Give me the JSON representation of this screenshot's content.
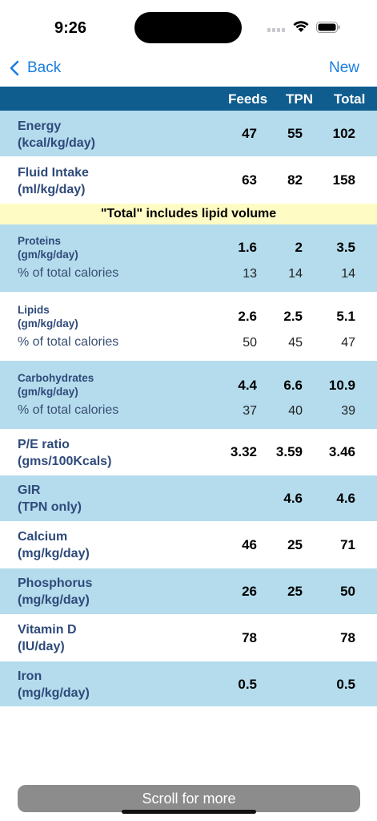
{
  "status": {
    "time": "9:26"
  },
  "nav": {
    "back_label": "Back",
    "new_label": "New"
  },
  "columns": {
    "feeds": "Feeds",
    "tpn": "TPN",
    "total": "Total"
  },
  "notice": "\"Total\" includes lipid volume",
  "rows": {
    "energy": {
      "label": "Energy\n(kcal/kg/day)",
      "feeds": "47",
      "tpn": "55",
      "total": "102"
    },
    "fluid": {
      "label": "Fluid Intake\n(ml/kg/day)",
      "feeds": "63",
      "tpn": "82",
      "total": "158"
    },
    "proteins": {
      "label": "Proteins\n(gm/kg/day)",
      "feeds": "1.6",
      "tpn": "2",
      "total": "3.5",
      "sub_label": "% of total calories",
      "sub_feeds": "13",
      "sub_tpn": "14",
      "sub_total": "14"
    },
    "lipids": {
      "label": "Lipids\n(gm/kg/day)",
      "feeds": "2.6",
      "tpn": "2.5",
      "total": "5.1",
      "sub_label": "% of total calories",
      "sub_feeds": "50",
      "sub_tpn": "45",
      "sub_total": "47"
    },
    "carbs": {
      "label": "Carbohydrates\n(gm/kg/day)",
      "feeds": "4.4",
      "tpn": "6.6",
      "total": "10.9",
      "sub_label": "% of total calories",
      "sub_feeds": "37",
      "sub_tpn": "40",
      "sub_total": "39"
    },
    "pe_ratio": {
      "label": "P/E ratio\n(gms/100Kcals)",
      "feeds": "3.32",
      "tpn": "3.59",
      "total": "3.46"
    },
    "gir": {
      "label": "GIR\n(TPN only)",
      "feeds": "",
      "tpn": "4.6",
      "total": "4.6"
    },
    "calcium": {
      "label": "Calcium\n(mg/kg/day)",
      "feeds": "46",
      "tpn": "25",
      "total": "71"
    },
    "phosphorus": {
      "label": "Phosphorus\n(mg/kg/day)",
      "feeds": "26",
      "tpn": "25",
      "total": "50"
    },
    "vitamin_d": {
      "label": "Vitamin D\n(IU/day)",
      "feeds": "78",
      "tpn": "",
      "total": "78"
    },
    "iron": {
      "label": "Iron\n(mg/kg/day)",
      "feeds": "0.5",
      "tpn": "",
      "total": "0.5"
    }
  },
  "footer": {
    "scroll_label": "Scroll for more"
  },
  "colors": {
    "accent": "#1a7ee0",
    "header_bg": "#0f5d8f",
    "row_blue": "#b4dced",
    "notice_bg": "#fffbc4",
    "label_text": "#2f4a7a"
  }
}
